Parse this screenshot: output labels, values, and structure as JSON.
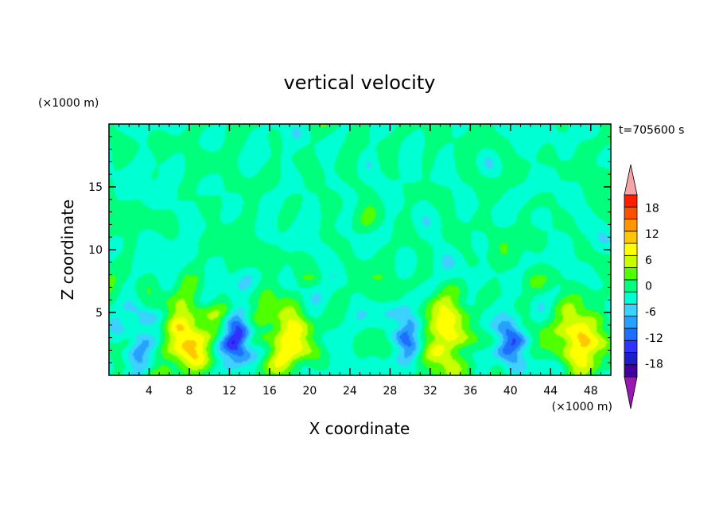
{
  "chart_data": {
    "type": "heatmap",
    "title": "vertical velocity",
    "xlabel": "X coordinate",
    "ylabel": "Z coordinate",
    "x_unit": "(×1000 m)",
    "y_unit": "(×1000 m)",
    "time_label": "t=705600 s",
    "xlim": [
      0,
      50
    ],
    "ylim": [
      0,
      20
    ],
    "x_ticks": [
      4,
      8,
      12,
      16,
      20,
      24,
      28,
      32,
      36,
      40,
      44,
      48
    ],
    "y_ticks": [
      5,
      10,
      15
    ],
    "colorbar": {
      "ticks": [
        18,
        12,
        6,
        0,
        -6,
        -12,
        -18
      ],
      "levels": [
        -21,
        -18,
        -15,
        -12,
        -9,
        -6,
        -3,
        0,
        3,
        6,
        9,
        12,
        15,
        18,
        21
      ],
      "colors": [
        "#43009c",
        "#1e1ec8",
        "#3232ff",
        "#1e6eff",
        "#28a0ff",
        "#3cd2ff",
        "#00ffd2",
        "#00ff7d",
        "#50ff00",
        "#c8ff00",
        "#ffff00",
        "#ffc800",
        "#ff9600",
        "#ff5000",
        "#ff1e00"
      ],
      "under_color": "#9a17b3",
      "over_color": "#f4a6a6"
    },
    "features": [
      {
        "kind": "updraft",
        "x": 8.0,
        "z": 3.2,
        "peak": 13
      },
      {
        "kind": "downdraft",
        "x": 12.8,
        "z": 3.0,
        "peak": -12
      },
      {
        "kind": "updraft",
        "x": 17.8,
        "z": 3.0,
        "peak": 10
      },
      {
        "kind": "downdraft",
        "x": 29.8,
        "z": 3.2,
        "peak": -11
      },
      {
        "kind": "updraft",
        "x": 33.6,
        "z": 3.2,
        "peak": 12
      },
      {
        "kind": "downdraft",
        "x": 40.0,
        "z": 2.8,
        "peak": -10
      },
      {
        "kind": "updraft",
        "x": 47.0,
        "z": 3.0,
        "peak": 12
      },
      {
        "kind": "downdraft",
        "x": 3.0,
        "z": 3.2,
        "peak": -8
      }
    ]
  }
}
